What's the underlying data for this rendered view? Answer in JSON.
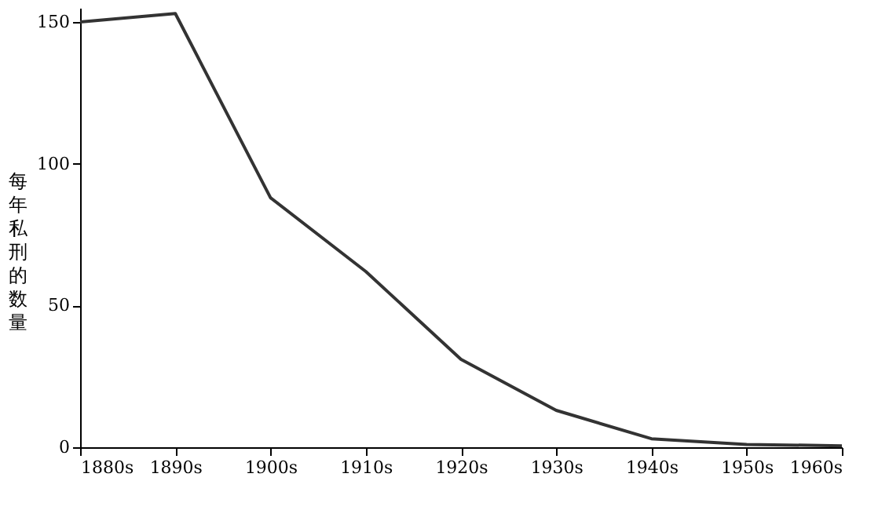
{
  "chart_data": {
    "type": "line",
    "ylabel": "每年私刑的数量",
    "categories": [
      "1880s",
      "1890s",
      "1900s",
      "1910s",
      "1920s",
      "1930s",
      "1940s",
      "1950s",
      "1960s"
    ],
    "series": [
      {
        "color": "#333333",
        "values": [
          150,
          153,
          88,
          62,
          31,
          13,
          3,
          1,
          0.5
        ]
      }
    ],
    "ylim": [
      0,
      155
    ],
    "yticks": [
      0,
      50,
      100,
      150
    ],
    "grid": false,
    "marker": "none",
    "line_style": "solid"
  }
}
